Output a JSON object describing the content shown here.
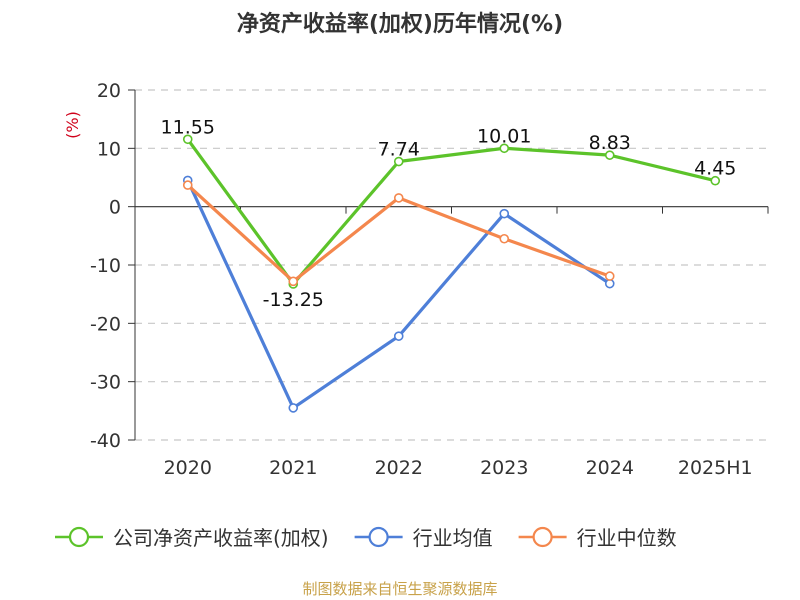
{
  "chart_data": {
    "type": "line",
    "title": "净资产收益率(加权)历年情况(%)",
    "ylabel": "(%)",
    "xlabel": "",
    "categories": [
      "2020",
      "2021",
      "2022",
      "2023",
      "2024",
      "2025H1"
    ],
    "ylim": [
      -40,
      20
    ],
    "yticks": [
      20,
      10,
      0,
      -10,
      -20,
      -30,
      -40
    ],
    "grid": true,
    "legend_position": "bottom",
    "series": [
      {
        "name": "公司净资产收益率(加权)",
        "color": "#5cc32a",
        "values": [
          11.55,
          -13.25,
          7.74,
          10.01,
          8.83,
          4.45
        ],
        "labels": [
          "11.55",
          "-13.25",
          "7.74",
          "10.01",
          "8.83",
          "4.45"
        ]
      },
      {
        "name": "行业均值",
        "color": "#4e7fd8",
        "values": [
          4.5,
          -34.5,
          -22.2,
          -1.2,
          -13.2,
          null
        ]
      },
      {
        "name": "行业中位数",
        "color": "#f4874d",
        "values": [
          3.7,
          -12.8,
          1.5,
          -5.5,
          -11.9,
          null
        ]
      }
    ]
  },
  "footer": {
    "source": "制图数据来自恒生聚源数据库"
  }
}
